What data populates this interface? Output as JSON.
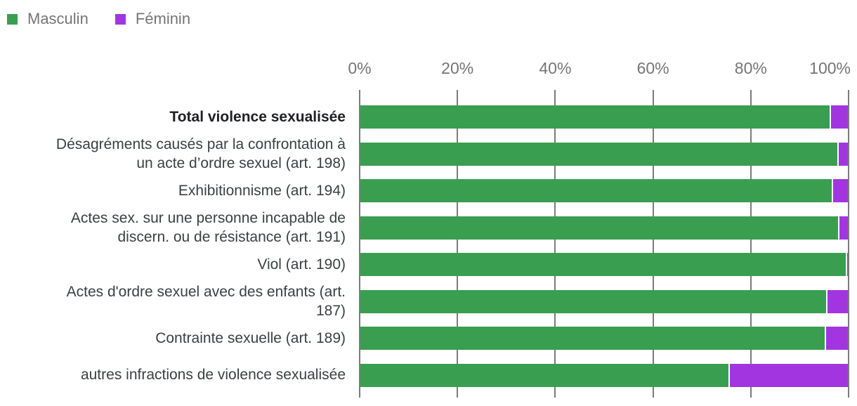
{
  "legend": {
    "items": [
      {
        "label": "Masculin",
        "color": "#3a9e51"
      },
      {
        "label": "Féminin",
        "color": "#a335e0"
      }
    ]
  },
  "axis": {
    "tick_labels": [
      "0%",
      "20%",
      "40%",
      "60%",
      "80%",
      "100%"
    ]
  },
  "chart_data": {
    "type": "bar",
    "orientation": "horizontal",
    "stacked": true,
    "unit": "percent",
    "xlim": [
      0,
      100
    ],
    "grid": true,
    "legend_position": "top-left",
    "categories": [
      "Total violence sexualisée",
      "Désagréments causés par la confrontation à un acte d’ordre sexuel (art. 198)",
      "Exhibitionnisme (art. 194)",
      "Actes sex. sur une personne incapable de discern. ou de résistance (art. 191)",
      "Viol (art. 190)",
      "Actes d'ordre sexuel avec des enfants (art. 187)",
      "Contrainte sexuelle (art. 189)",
      "autres infractions de violence sexualisée"
    ],
    "category_lines": [
      [
        "Total violence sexualisée"
      ],
      [
        "Désagréments causés par la confrontation à",
        "un acte d’ordre sexuel (art. 198)"
      ],
      [
        "Exhibitionnisme (art. 194)"
      ],
      [
        "Actes sex. sur une personne incapable de",
        "discern. ou de résistance (art. 191)"
      ],
      [
        "Viol (art. 190)"
      ],
      [
        "Actes d'ordre sexuel avec des enfants (art.",
        "187)"
      ],
      [
        "Contrainte sexuelle (art. 189)"
      ],
      [
        "autres infractions de violence sexualisée"
      ]
    ],
    "bold_category_index": 0,
    "series": [
      {
        "name": "Masculin",
        "color": "#3a9e51",
        "values": [
          96.0,
          97.5,
          96.4,
          97.7,
          99.3,
          95.2,
          94.9,
          75.3
        ]
      },
      {
        "name": "Féminin",
        "color": "#a335e0",
        "values": [
          4.0,
          2.5,
          3.6,
          2.3,
          0.7,
          4.8,
          5.1,
          24.7
        ]
      }
    ]
  },
  "colors": {
    "masculin": "#3a9e51",
    "feminin": "#a335e0",
    "gridline": "#7b7b7b",
    "axis_text": "#757575",
    "category_text": "#3c4043",
    "category_text_bold": "#202124",
    "background": "#ffffff"
  }
}
